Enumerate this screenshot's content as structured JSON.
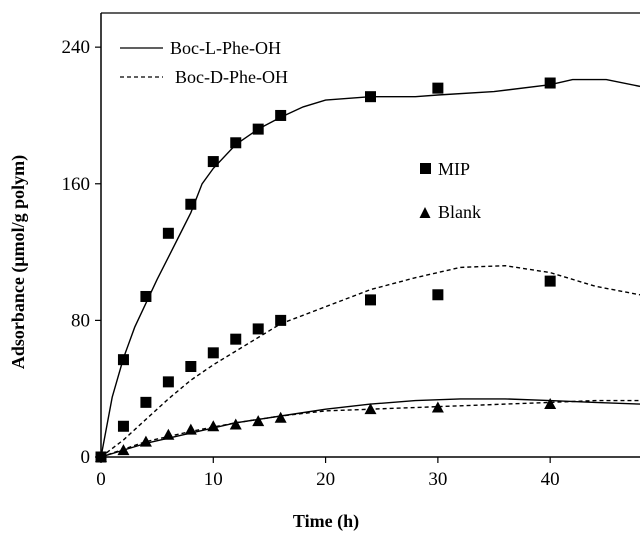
{
  "chart_data": {
    "type": "line",
    "xlabel": "Time (h)",
    "ylabel": "Adsorbance (μmol/g polym)",
    "xlim": [
      0,
      48
    ],
    "ylim": [
      0,
      260
    ],
    "x_ticks": [
      0,
      10,
      20,
      30,
      40
    ],
    "x_tick_labels": [
      "0",
      "10",
      "20",
      "30",
      "40"
    ],
    "y_ticks": [
      0,
      80,
      160,
      240
    ],
    "y_tick_labels": [
      "0",
      "80",
      "160",
      "240"
    ],
    "grid": false,
    "legend": {
      "placement": "top-left",
      "entries": [
        {
          "label": "Boc-L-Phe-OH",
          "line_style": "solid"
        },
        {
          "label": "Boc-D-Phe-OH",
          "line_style": "dashed"
        }
      ]
    },
    "marker_legend": {
      "placement": "center-right",
      "entries": [
        {
          "label": "MIP",
          "marker": "square"
        },
        {
          "label": "Blank",
          "marker": "triangle"
        }
      ]
    },
    "series": [
      {
        "name": "Boc-L-Phe-OH",
        "marker": "square",
        "line_style": "solid",
        "points": [
          [
            0,
            0
          ],
          [
            2,
            57
          ],
          [
            4,
            94
          ],
          [
            6,
            131
          ],
          [
            8,
            148
          ],
          [
            10,
            173
          ],
          [
            12,
            184
          ],
          [
            14,
            192
          ],
          [
            16,
            200
          ],
          [
            24,
            211
          ],
          [
            30,
            216
          ],
          [
            40,
            219
          ]
        ],
        "curve": [
          [
            0,
            0
          ],
          [
            1,
            35
          ],
          [
            2,
            58
          ],
          [
            3,
            76
          ],
          [
            4,
            90
          ],
          [
            5,
            104
          ],
          [
            6,
            117
          ],
          [
            7,
            130
          ],
          [
            8,
            143
          ],
          [
            9,
            160
          ],
          [
            10,
            169
          ],
          [
            12,
            183
          ],
          [
            14,
            192
          ],
          [
            16,
            199
          ],
          [
            18,
            205
          ],
          [
            20,
            209
          ],
          [
            24,
            211
          ],
          [
            28,
            211
          ],
          [
            30,
            212
          ],
          [
            35,
            214
          ],
          [
            40,
            218
          ],
          [
            42,
            221
          ],
          [
            45,
            221
          ],
          [
            48,
            217
          ]
        ]
      },
      {
        "name": "Boc-D-Phe-OH",
        "marker": "square",
        "line_style": "dashed",
        "points": [
          [
            0,
            0
          ],
          [
            2,
            18
          ],
          [
            4,
            32
          ],
          [
            6,
            44
          ],
          [
            8,
            53
          ],
          [
            10,
            61
          ],
          [
            12,
            69
          ],
          [
            14,
            75
          ],
          [
            16,
            80
          ],
          [
            24,
            92
          ],
          [
            30,
            95
          ],
          [
            40,
            103
          ]
        ],
        "curve": [
          [
            0,
            0
          ],
          [
            2,
            10
          ],
          [
            4,
            22
          ],
          [
            6,
            34
          ],
          [
            8,
            45
          ],
          [
            10,
            54
          ],
          [
            12,
            62
          ],
          [
            14,
            70
          ],
          [
            16,
            78
          ],
          [
            20,
            88
          ],
          [
            24,
            98
          ],
          [
            28,
            105
          ],
          [
            32,
            111
          ],
          [
            36,
            112
          ],
          [
            40,
            108
          ],
          [
            44,
            100
          ],
          [
            48,
            95
          ]
        ]
      },
      {
        "name": "Boc-L-Phe-OH (Blank)",
        "marker": "triangle",
        "line_style": "solid",
        "points": [
          [
            0,
            0
          ],
          [
            2,
            4
          ],
          [
            4,
            9
          ],
          [
            6,
            13
          ],
          [
            8,
            16
          ],
          [
            10,
            18
          ],
          [
            12,
            19
          ],
          [
            14,
            21
          ],
          [
            16,
            23
          ],
          [
            24,
            28
          ],
          [
            30,
            29
          ],
          [
            40,
            31
          ]
        ],
        "curve": [
          [
            0,
            0
          ],
          [
            4,
            8
          ],
          [
            8,
            14
          ],
          [
            12,
            20
          ],
          [
            16,
            24
          ],
          [
            20,
            28
          ],
          [
            24,
            31
          ],
          [
            28,
            33
          ],
          [
            32,
            34
          ],
          [
            36,
            34
          ],
          [
            40,
            33
          ],
          [
            44,
            32
          ],
          [
            48,
            31
          ]
        ]
      },
      {
        "name": "Boc-D-Phe-OH (Blank)",
        "marker": "triangle",
        "line_style": "dashed",
        "points": [],
        "curve": [
          [
            0,
            0
          ],
          [
            4,
            9
          ],
          [
            8,
            15
          ],
          [
            12,
            20
          ],
          [
            16,
            24
          ],
          [
            20,
            27
          ],
          [
            24,
            28
          ],
          [
            28,
            29
          ],
          [
            32,
            30
          ],
          [
            36,
            31
          ],
          [
            40,
            32
          ],
          [
            44,
            33
          ],
          [
            48,
            33
          ]
        ]
      }
    ]
  }
}
